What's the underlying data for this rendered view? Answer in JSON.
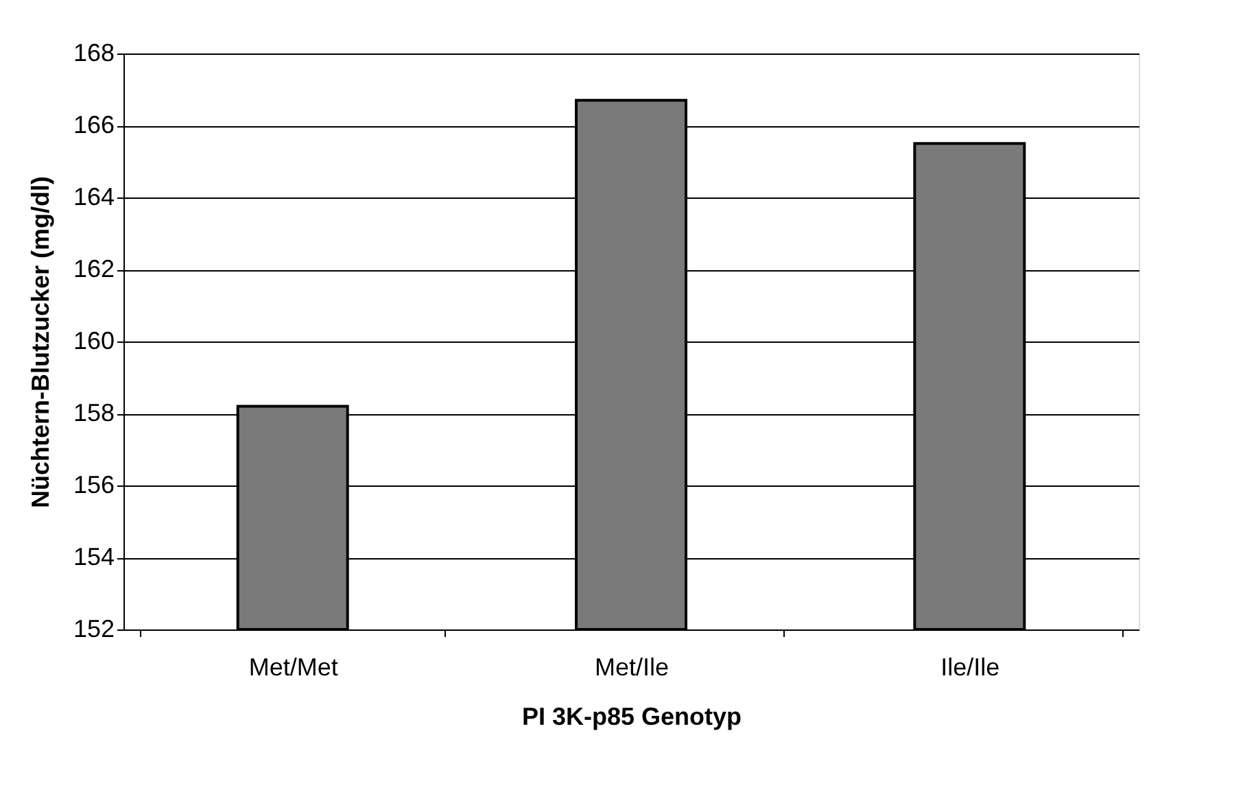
{
  "chart_data": {
    "type": "bar",
    "xlabel": "PI 3K-p85 Genotyp",
    "ylabel": "Nüchtern-Blutzucker (mg/dl)",
    "categories": [
      "Met/Met",
      "Met/Ile",
      "Ile/Ile"
    ],
    "values": [
      158.2,
      166.7,
      165.5
    ],
    "color": "#7a7a7a",
    "ylim": [
      152,
      168
    ],
    "yticks": [
      152,
      154,
      156,
      158,
      160,
      162,
      164,
      166,
      168
    ],
    "grid": "y"
  }
}
